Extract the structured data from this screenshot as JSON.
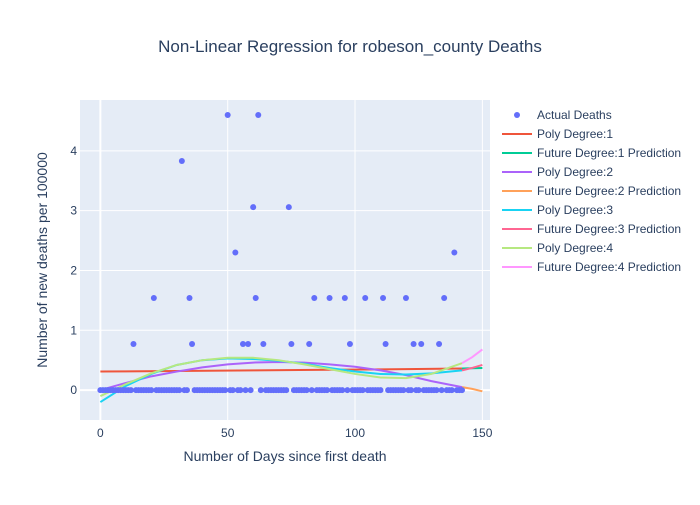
{
  "chart_data": {
    "type": "scatter",
    "title": "Non-Linear Regression for robeson_county Deaths",
    "xlabel": "Number of Days since first death",
    "ylabel": "Number of new deaths per 100000",
    "xlim": [
      -8,
      153
    ],
    "ylim": [
      -0.5,
      4.85
    ],
    "xticks": [
      0,
      50,
      100,
      150
    ],
    "yticks": [
      0,
      1,
      2,
      3,
      4
    ],
    "grid": true,
    "legend_position": "right",
    "background_color": "#e5ecf6",
    "scatter": {
      "name": "Actual Deaths",
      "color": "#636efa",
      "points": [
        [
          0,
          0
        ],
        [
          1,
          0
        ],
        [
          2,
          0
        ],
        [
          3,
          0
        ],
        [
          4,
          0
        ],
        [
          5,
          0
        ],
        [
          6,
          0
        ],
        [
          7,
          0
        ],
        [
          8,
          0
        ],
        [
          9,
          0
        ],
        [
          10,
          0
        ],
        [
          11,
          0
        ],
        [
          12,
          0
        ],
        [
          13,
          0.77
        ],
        [
          14,
          0
        ],
        [
          15,
          0
        ],
        [
          16,
          0
        ],
        [
          17,
          0
        ],
        [
          18,
          0
        ],
        [
          19,
          0
        ],
        [
          20,
          0
        ],
        [
          21,
          1.54
        ],
        [
          22,
          0
        ],
        [
          23,
          0
        ],
        [
          24,
          0
        ],
        [
          25,
          0
        ],
        [
          26,
          0
        ],
        [
          27,
          0
        ],
        [
          28,
          0
        ],
        [
          29,
          0
        ],
        [
          30,
          0
        ],
        [
          31,
          0
        ],
        [
          32,
          3.83
        ],
        [
          33,
          0
        ],
        [
          34,
          0
        ],
        [
          35,
          1.54
        ],
        [
          36,
          0.77
        ],
        [
          37,
          0
        ],
        [
          38,
          0
        ],
        [
          39,
          0
        ],
        [
          40,
          0
        ],
        [
          41,
          0
        ],
        [
          42,
          0
        ],
        [
          43,
          0
        ],
        [
          44,
          0
        ],
        [
          45,
          0
        ],
        [
          46,
          0
        ],
        [
          47,
          0
        ],
        [
          48,
          0
        ],
        [
          49,
          0
        ],
        [
          50,
          4.6
        ],
        [
          51,
          0
        ],
        [
          52,
          0
        ],
        [
          53,
          2.3
        ],
        [
          54,
          0
        ],
        [
          55,
          0
        ],
        [
          56,
          0.77
        ],
        [
          57,
          0
        ],
        [
          58,
          0.77
        ],
        [
          59,
          0
        ],
        [
          60,
          3.06
        ],
        [
          61,
          1.54
        ],
        [
          62,
          4.6
        ],
        [
          63,
          0
        ],
        [
          64,
          0.77
        ],
        [
          65,
          0
        ],
        [
          66,
          0
        ],
        [
          67,
          0
        ],
        [
          68,
          0
        ],
        [
          69,
          0
        ],
        [
          70,
          0
        ],
        [
          71,
          0
        ],
        [
          72,
          0
        ],
        [
          73,
          0
        ],
        [
          74,
          3.06
        ],
        [
          75,
          0.77
        ],
        [
          76,
          0
        ],
        [
          77,
          0
        ],
        [
          78,
          0
        ],
        [
          79,
          0
        ],
        [
          80,
          0
        ],
        [
          81,
          0
        ],
        [
          82,
          0.77
        ],
        [
          83,
          0
        ],
        [
          84,
          1.54
        ],
        [
          85,
          0
        ],
        [
          86,
          0
        ],
        [
          87,
          0
        ],
        [
          88,
          0
        ],
        [
          89,
          0
        ],
        [
          90,
          1.54
        ],
        [
          91,
          0
        ],
        [
          92,
          0
        ],
        [
          93,
          0
        ],
        [
          94,
          0
        ],
        [
          95,
          0
        ],
        [
          96,
          1.54
        ],
        [
          97,
          0
        ],
        [
          98,
          0.77
        ],
        [
          99,
          0
        ],
        [
          100,
          0
        ],
        [
          101,
          0
        ],
        [
          102,
          0
        ],
        [
          103,
          0
        ],
        [
          104,
          1.54
        ],
        [
          105,
          0
        ],
        [
          106,
          0
        ],
        [
          107,
          0
        ],
        [
          108,
          0
        ],
        [
          109,
          0
        ],
        [
          110,
          0
        ],
        [
          111,
          1.54
        ],
        [
          112,
          0.77
        ],
        [
          113,
          0
        ],
        [
          114,
          0
        ],
        [
          115,
          0
        ],
        [
          116,
          0
        ],
        [
          117,
          0
        ],
        [
          118,
          0
        ],
        [
          119,
          0
        ],
        [
          120,
          1.54
        ],
        [
          121,
          0
        ],
        [
          122,
          0
        ],
        [
          123,
          0.77
        ],
        [
          124,
          0
        ],
        [
          125,
          0
        ],
        [
          126,
          0.77
        ],
        [
          127,
          0
        ],
        [
          128,
          0
        ],
        [
          129,
          0
        ],
        [
          130,
          0
        ],
        [
          131,
          0
        ],
        [
          132,
          0
        ],
        [
          133,
          0.77
        ],
        [
          134,
          0
        ],
        [
          135,
          1.54
        ],
        [
          136,
          0
        ],
        [
          137,
          0
        ],
        [
          138,
          0
        ],
        [
          139,
          2.3
        ],
        [
          140,
          0
        ],
        [
          141,
          0
        ],
        [
          142,
          0
        ]
      ]
    },
    "series": [
      {
        "name": "Poly Degree:1",
        "color": "#ef553b",
        "x": [
          0,
          30,
          60,
          90,
          120,
          142
        ],
        "y": [
          0.31,
          0.32,
          0.33,
          0.34,
          0.35,
          0.36
        ]
      },
      {
        "name": "Future Degree:1 Prediction",
        "color": "#00cc96",
        "x": [
          142,
          146,
          150
        ],
        "y": [
          0.36,
          0.365,
          0.37
        ]
      },
      {
        "name": "Poly Degree:2",
        "color": "#ab63fa",
        "x": [
          0,
          10,
          20,
          30,
          40,
          50,
          60,
          70,
          80,
          90,
          100,
          110,
          120,
          130,
          142
        ],
        "y": [
          0.0,
          0.12,
          0.23,
          0.31,
          0.38,
          0.43,
          0.46,
          0.47,
          0.46,
          0.43,
          0.39,
          0.33,
          0.25,
          0.15,
          0.05
        ]
      },
      {
        "name": "Future Degree:2 Prediction",
        "color": "#ffa15a",
        "x": [
          142,
          146,
          150
        ],
        "y": [
          0.05,
          0.02,
          -0.02
        ]
      },
      {
        "name": "Poly Degree:3",
        "color": "#19d3f3",
        "x": [
          0,
          10,
          20,
          30,
          40,
          50,
          60,
          70,
          80,
          90,
          100,
          110,
          120,
          130,
          142
        ],
        "y": [
          -0.2,
          0.07,
          0.27,
          0.42,
          0.5,
          0.53,
          0.52,
          0.49,
          0.44,
          0.37,
          0.31,
          0.27,
          0.26,
          0.28,
          0.33
        ]
      },
      {
        "name": "Future Degree:3 Prediction",
        "color": "#ff6692",
        "x": [
          142,
          146,
          150
        ],
        "y": [
          0.33,
          0.37,
          0.42
        ]
      },
      {
        "name": "Poly Degree:4",
        "color": "#b6e880",
        "x": [
          0,
          10,
          20,
          30,
          40,
          50,
          60,
          70,
          80,
          90,
          100,
          110,
          120,
          130,
          142
        ],
        "y": [
          -0.1,
          0.1,
          0.28,
          0.42,
          0.5,
          0.54,
          0.54,
          0.5,
          0.43,
          0.35,
          0.27,
          0.21,
          0.2,
          0.27,
          0.45
        ]
      },
      {
        "name": "Future Degree:4 Prediction",
        "color": "#ff97ff",
        "x": [
          142,
          146,
          150
        ],
        "y": [
          0.45,
          0.55,
          0.68
        ]
      }
    ]
  }
}
